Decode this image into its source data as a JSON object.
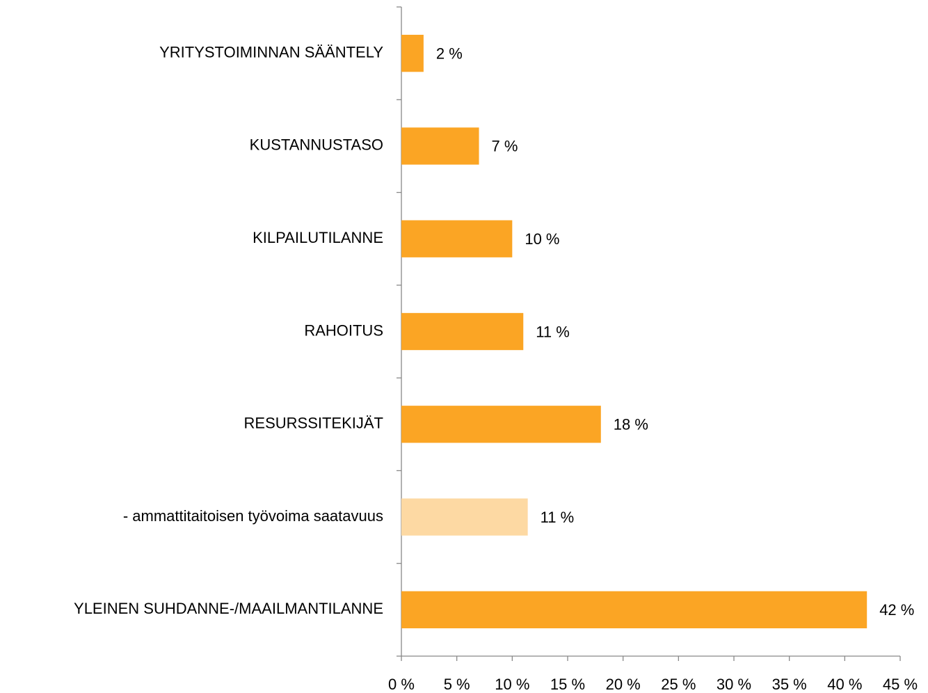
{
  "chart_data": {
    "type": "bar",
    "orientation": "horizontal",
    "categories": [
      "YRITYSTOIMINNAN SÄÄNTELY",
      "KUSTANNUSTASO",
      "KILPAILUTILANNE",
      "RAHOITUS",
      "RESURSSITEKIJÄT",
      "- ammattitaitoisen työvoima saatavuus",
      "YLEINEN SUHDANNE-/MAAILMANTILANNE"
    ],
    "values": [
      2,
      7,
      10,
      11,
      18,
      11.4,
      42
    ],
    "value_labels": [
      "2 %",
      "7 %",
      "10 %",
      "11 %",
      "18 %",
      "11 %",
      "42 %"
    ],
    "colors": [
      "#fba524",
      "#fba524",
      "#fba524",
      "#fba524",
      "#fba524",
      "#fdd9a3",
      "#fba524"
    ],
    "xlim": [
      0,
      45
    ],
    "xticks": [
      {
        "value": 0,
        "label": "0 %"
      },
      {
        "value": 5,
        "label": "5 %"
      },
      {
        "value": 10,
        "label": "10 %"
      },
      {
        "value": 15,
        "label": "15 %"
      },
      {
        "value": 20,
        "label": "20 %"
      },
      {
        "value": 25,
        "label": "25 %"
      },
      {
        "value": 30,
        "label": "30 %"
      },
      {
        "value": 35,
        "label": "35 %"
      },
      {
        "value": 40,
        "label": "40 %"
      },
      {
        "value": 45,
        "label": "45 %"
      }
    ],
    "grid": false
  }
}
